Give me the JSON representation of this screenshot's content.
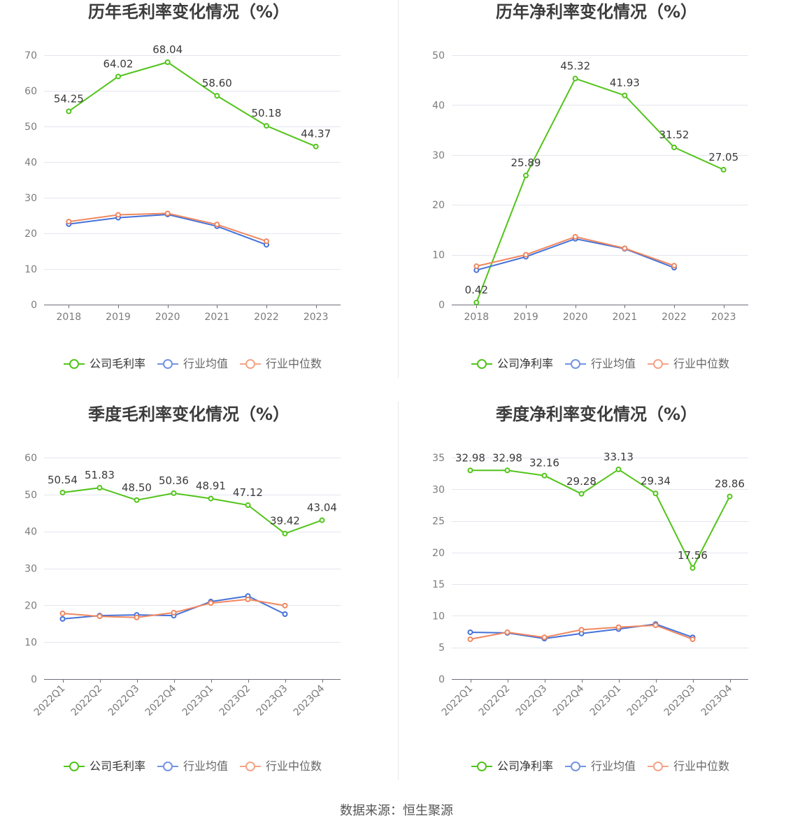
{
  "chart_data": [
    {
      "type": "line",
      "title": "历年毛利率变化情况（%）",
      "xlabel": "",
      "ylabel": "",
      "categories": [
        "2018",
        "2019",
        "2020",
        "2021",
        "2022",
        "2023"
      ],
      "ylim": [
        0,
        70
      ],
      "yticks": [
        0,
        10,
        20,
        30,
        40,
        50,
        60,
        70
      ],
      "grid": true,
      "legend_position": "bottom",
      "series": [
        {
          "name": "公司毛利率",
          "color": "#52c41a",
          "data_labels": true,
          "values": [
            54.25,
            64.02,
            68.04,
            58.6,
            50.18,
            44.37
          ]
        },
        {
          "name": "行业均值",
          "color": "#4572d9",
          "data_labels": false,
          "values": [
            22.6,
            24.4,
            25.3,
            22.0,
            16.8,
            null
          ]
        },
        {
          "name": "行业中位数",
          "color": "#f0875f",
          "data_labels": false,
          "values": [
            23.3,
            25.2,
            25.6,
            22.5,
            17.8,
            null
          ]
        }
      ]
    },
    {
      "type": "line",
      "title": "历年净利率变化情况（%）",
      "xlabel": "",
      "ylabel": "",
      "categories": [
        "2018",
        "2019",
        "2020",
        "2021",
        "2022",
        "2023"
      ],
      "ylim": [
        0,
        50
      ],
      "yticks": [
        0,
        10,
        20,
        30,
        40,
        50
      ],
      "grid": true,
      "legend_position": "bottom",
      "series": [
        {
          "name": "公司净利率",
          "color": "#52c41a",
          "data_labels": true,
          "values": [
            0.42,
            25.89,
            45.32,
            41.93,
            31.52,
            27.05
          ]
        },
        {
          "name": "行业均值",
          "color": "#4572d9",
          "data_labels": false,
          "values": [
            6.9,
            9.6,
            13.2,
            11.2,
            7.4,
            null
          ]
        },
        {
          "name": "行业中位数",
          "color": "#f0875f",
          "data_labels": false,
          "values": [
            7.7,
            10.0,
            13.6,
            11.3,
            7.8,
            null
          ]
        }
      ]
    },
    {
      "type": "line",
      "title": "季度毛利率变化情况（%）",
      "xlabel": "",
      "ylabel": "",
      "categories": [
        "2022Q1",
        "2022Q2",
        "2022Q3",
        "2022Q4",
        "2023Q1",
        "2023Q2",
        "2023Q3",
        "2023Q4"
      ],
      "ylim": [
        0,
        60
      ],
      "yticks": [
        0,
        10,
        20,
        30,
        40,
        50,
        60
      ],
      "grid": true,
      "legend_position": "bottom",
      "series": [
        {
          "name": "公司毛利率",
          "color": "#52c41a",
          "data_labels": true,
          "values": [
            50.54,
            51.83,
            48.5,
            50.36,
            48.91,
            47.12,
            39.42,
            43.04
          ]
        },
        {
          "name": "行业均值",
          "color": "#4572d9",
          "data_labels": false,
          "values": [
            16.3,
            17.2,
            17.4,
            17.2,
            21.0,
            22.5,
            17.6,
            null
          ]
        },
        {
          "name": "行业中位数",
          "color": "#f0875f",
          "data_labels": false,
          "values": [
            17.8,
            17.0,
            16.7,
            18.0,
            20.6,
            21.6,
            19.9,
            null
          ]
        }
      ]
    },
    {
      "type": "line",
      "title": "季度净利率变化情况（%）",
      "xlabel": "",
      "ylabel": "",
      "categories": [
        "2022Q1",
        "2022Q2",
        "2022Q3",
        "2022Q4",
        "2023Q1",
        "2023Q2",
        "2023Q3",
        "2023Q4"
      ],
      "ylim": [
        0,
        35
      ],
      "yticks": [
        0,
        5,
        10,
        15,
        20,
        25,
        30,
        35
      ],
      "grid": true,
      "legend_position": "bottom",
      "series": [
        {
          "name": "公司净利率",
          "color": "#52c41a",
          "data_labels": true,
          "values": [
            32.98,
            32.98,
            32.16,
            29.28,
            33.13,
            29.34,
            17.56,
            28.86
          ]
        },
        {
          "name": "行业均值",
          "color": "#4572d9",
          "data_labels": false,
          "values": [
            7.4,
            7.3,
            6.4,
            7.2,
            7.9,
            8.7,
            6.6,
            null
          ]
        },
        {
          "name": "行业中位数",
          "color": "#f0875f",
          "data_labels": false,
          "values": [
            6.3,
            7.4,
            6.6,
            7.8,
            8.2,
            8.5,
            6.3,
            null
          ]
        }
      ]
    }
  ],
  "source": "数据来源：恒生聚源"
}
